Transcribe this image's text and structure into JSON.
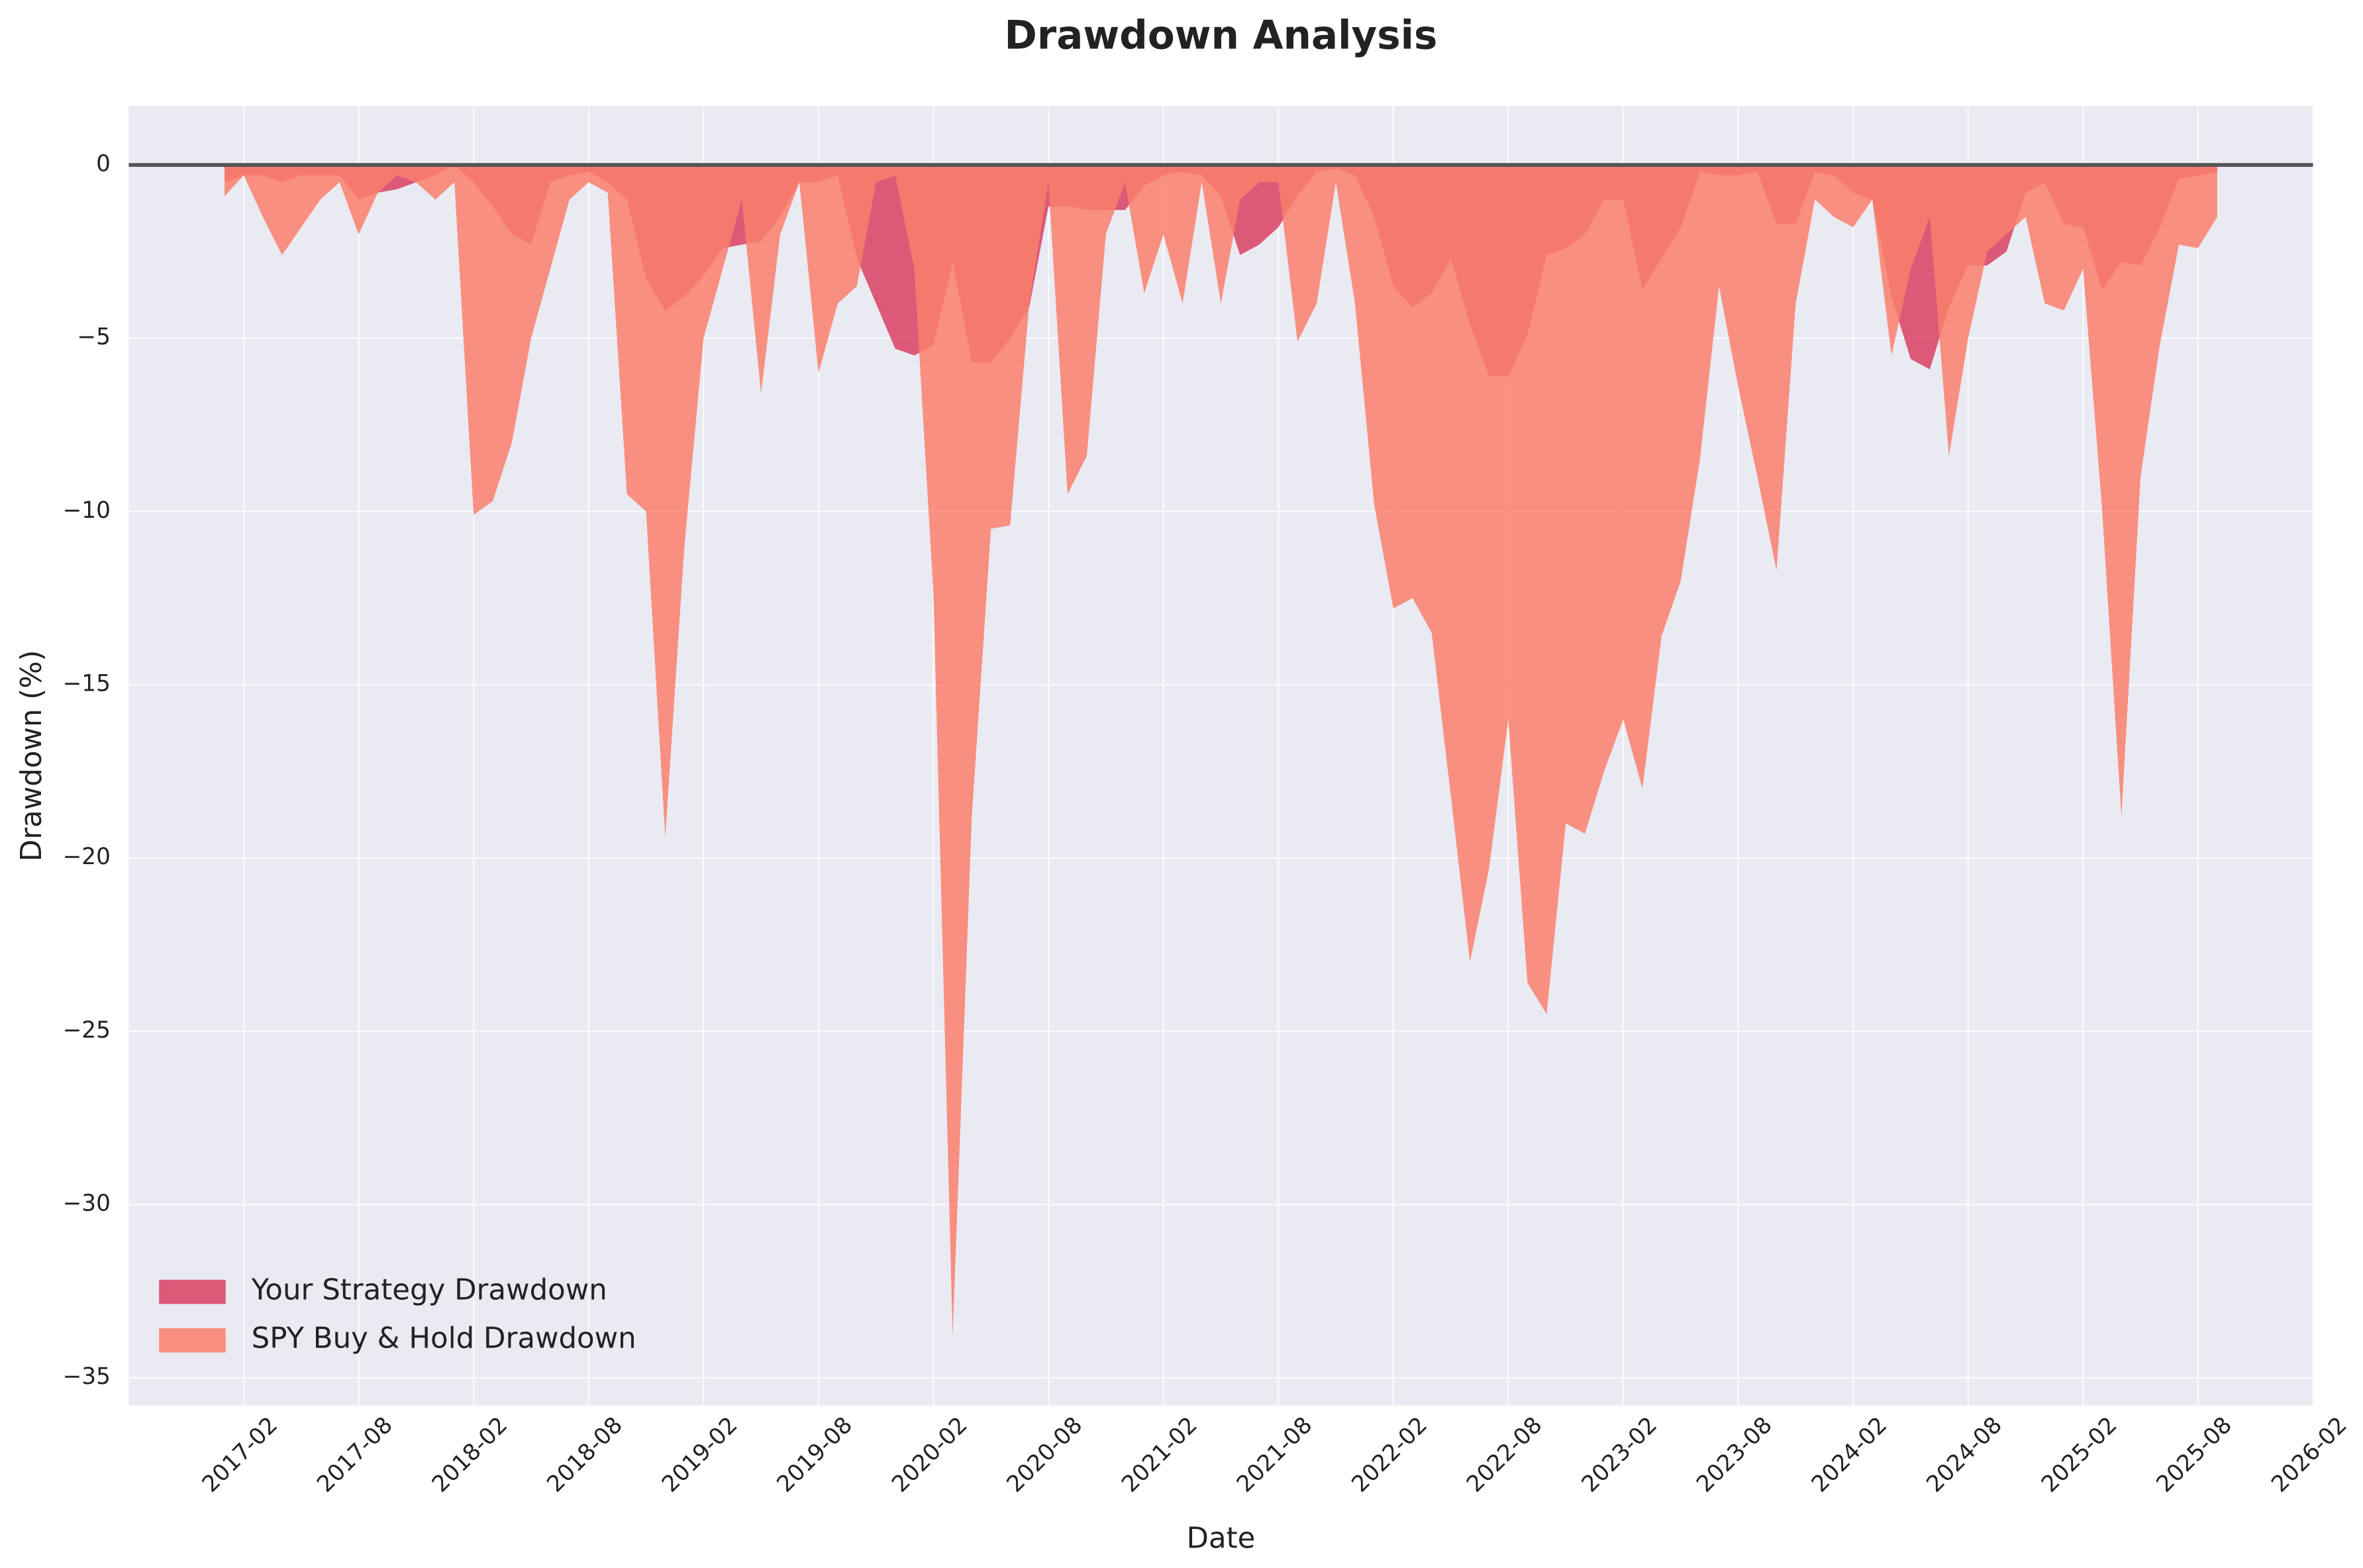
{
  "chart_data": {
    "type": "area",
    "title": "Drawdown Analysis",
    "x_label": "Date",
    "y_label": "Drawdown (%)",
    "x": [
      "2017-01",
      "2017-02",
      "2017-03",
      "2017-04",
      "2017-05",
      "2017-06",
      "2017-07",
      "2017-08",
      "2017-09",
      "2017-10",
      "2017-11",
      "2017-12",
      "2018-01",
      "2018-02",
      "2018-03",
      "2018-04",
      "2018-05",
      "2018-06",
      "2018-07",
      "2018-08",
      "2018-09",
      "2018-10",
      "2018-11",
      "2018-12",
      "2019-01",
      "2019-02",
      "2019-03",
      "2019-04",
      "2019-05",
      "2019-06",
      "2019-07",
      "2019-08",
      "2019-09",
      "2019-10",
      "2019-11",
      "2019-12",
      "2020-01",
      "2020-02",
      "2020-03",
      "2020-04",
      "2020-05",
      "2020-06",
      "2020-07",
      "2020-08",
      "2020-09",
      "2020-10",
      "2020-11",
      "2020-12",
      "2021-01",
      "2021-02",
      "2021-03",
      "2021-04",
      "2021-05",
      "2021-06",
      "2021-07",
      "2021-08",
      "2021-09",
      "2021-10",
      "2021-11",
      "2021-12",
      "2022-01",
      "2022-02",
      "2022-03",
      "2022-04",
      "2022-05",
      "2022-06",
      "2022-07",
      "2022-08",
      "2022-09",
      "2022-10",
      "2022-11",
      "2022-12",
      "2023-01",
      "2023-02",
      "2023-03",
      "2023-04",
      "2023-05",
      "2023-06",
      "2023-07",
      "2023-08",
      "2023-09",
      "2023-10",
      "2023-11",
      "2023-12",
      "2024-01",
      "2024-02",
      "2024-03",
      "2024-04",
      "2024-05",
      "2024-06",
      "2024-07",
      "2024-08",
      "2024-09",
      "2024-10",
      "2024-11",
      "2024-12",
      "2025-01",
      "2025-02",
      "2025-03",
      "2025-04",
      "2025-05",
      "2025-06",
      "2025-07",
      "2025-08",
      "2025-09"
    ],
    "series": [
      {
        "name": "Your Strategy Drawdown",
        "color": "#d93f63",
        "values": [
          -0.5,
          -0.3,
          -0.3,
          -0.5,
          -0.3,
          -0.3,
          -0.3,
          -1.0,
          -0.8,
          -0.7,
          -0.5,
          -0.3,
          0,
          -0.5,
          -1.2,
          -2.0,
          -2.3,
          -0.5,
          -0.3,
          -0.2,
          -0.5,
          -1.0,
          -3.3,
          -4.2,
          -3.8,
          -3.2,
          -2.4,
          -2.3,
          -2.2,
          -1.5,
          -0.5,
          -0.5,
          -0.3,
          -2.7,
          -4.0,
          -5.3,
          -5.5,
          -5.2,
          -2.8,
          -5.7,
          -5.7,
          -5.0,
          -4.1,
          -1.2,
          -1.2,
          -1.3,
          -1.3,
          -1.3,
          -0.6,
          -0.3,
          -0.2,
          -0.3,
          -0.9,
          -2.6,
          -2.3,
          -1.8,
          -0.9,
          -0.2,
          -0.1,
          -0.3,
          -1.5,
          -3.5,
          -4.1,
          -3.7,
          -2.7,
          -4.6,
          -6.1,
          -6.1,
          -4.9,
          -2.6,
          -2.4,
          -2.0,
          -1.0,
          -1.0,
          -3.6,
          -2.7,
          -1.8,
          -0.2,
          -0.3,
          -0.3,
          -0.2,
          -1.7,
          -1.7,
          -0.2,
          -0.3,
          -0.8,
          -1.0,
          -3.8,
          -5.6,
          -5.9,
          -4.1,
          -2.9,
          -2.9,
          -2.5,
          -0.8,
          -0.5,
          -1.7,
          -1.8,
          -3.6,
          -2.8,
          -2.9,
          -1.8,
          -0.4,
          -0.3,
          -0.2
        ]
      },
      {
        "name": "SPY Buy & Hold Drawdown",
        "color": "#fa7f6c",
        "values": [
          -0.9,
          -0.3,
          -1.5,
          -2.6,
          -1.8,
          -1.0,
          -0.5,
          -2.0,
          -0.8,
          -0.3,
          -0.5,
          -1.0,
          -0.5,
          -10.1,
          -9.7,
          -8.0,
          -5.0,
          -3.0,
          -1.0,
          -0.5,
          -0.8,
          -9.5,
          -10.0,
          -19.4,
          -11.0,
          -5.0,
          -3.0,
          -1.0,
          -6.6,
          -2.0,
          -0.5,
          -6.0,
          -4.0,
          -3.5,
          -0.5,
          -0.3,
          -3.0,
          -12.4,
          -33.8,
          -18.8,
          -10.5,
          -10.4,
          -4.0,
          -0.5,
          -9.5,
          -8.4,
          -2.0,
          -0.5,
          -3.7,
          -2.0,
          -4.0,
          -0.5,
          -4.0,
          -1.0,
          -0.5,
          -0.5,
          -5.1,
          -4.0,
          -0.5,
          -4.0,
          -9.8,
          -12.8,
          -12.5,
          -13.5,
          -18.2,
          -23.0,
          -20.3,
          -16.0,
          -23.6,
          -24.5,
          -19.0,
          -19.3,
          -17.5,
          -16.0,
          -18.0,
          -13.6,
          -12.0,
          -8.5,
          -3.5,
          -6.4,
          -9.0,
          -11.7,
          -4.0,
          -1.0,
          -1.5,
          -1.8,
          -1.0,
          -5.5,
          -3.0,
          -1.5,
          -8.4,
          -5.0,
          -2.5,
          -2.0,
          -1.5,
          -4.0,
          -4.2,
          -3.0,
          -10.0,
          -18.8,
          -9.0,
          -5.2,
          -2.3,
          -2.4,
          -1.5
        ]
      }
    ],
    "xlim": [
      "2016-08",
      "2026-02"
    ],
    "xticks": [
      "2017-02",
      "2017-08",
      "2018-02",
      "2018-08",
      "2019-02",
      "2019-08",
      "2020-02",
      "2020-08",
      "2021-02",
      "2021-08",
      "2022-02",
      "2022-08",
      "2023-02",
      "2023-08",
      "2024-02",
      "2024-08",
      "2025-02",
      "2025-08",
      "2026-02"
    ],
    "ylim": [
      -35.8,
      1.7
    ],
    "yticks": [
      0,
      {
        "value": -5,
        "label": "−5"
      },
      {
        "value": -10,
        "label": "−10"
      },
      {
        "value": -15,
        "label": "−15"
      },
      {
        "value": -20,
        "label": "−20"
      },
      {
        "value": -25,
        "label": "−25"
      },
      {
        "value": -30,
        "label": "−30"
      },
      {
        "value": -35,
        "label": "−35"
      }
    ],
    "grid": true,
    "legend": "lower left"
  }
}
